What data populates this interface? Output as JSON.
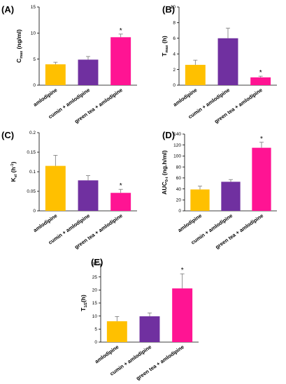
{
  "figure": {
    "colors": [
      "#FFC000",
      "#7030A0",
      "#FF1493"
    ]
  },
  "chart_data": [
    {
      "type": "bar",
      "panel": "(A)",
      "ylabel_main": "C",
      "ylabel_sub": "max",
      "ylabel_tail": " (ng/ml)",
      "categories": [
        "amlodipine",
        "cumin + amlodipine",
        "green tea + amlodipine"
      ],
      "values": [
        4.0,
        4.9,
        9.2
      ],
      "errors": [
        0.4,
        0.6,
        0.6
      ],
      "significant": [
        false,
        false,
        true
      ],
      "star_label": "*",
      "ylim": [
        0,
        15
      ],
      "yticks": [
        "0",
        "5",
        "10",
        "15"
      ]
    },
    {
      "type": "bar",
      "panel": "(B)",
      "ylabel_main": "T",
      "ylabel_sub": "max",
      "ylabel_tail": " (h)",
      "categories": [
        "amlodipine",
        "cumin + amlodipine",
        "green tea + amlodipine"
      ],
      "values": [
        2.6,
        6.0,
        1.0
      ],
      "errors": [
        0.6,
        1.3,
        0.15
      ],
      "significant": [
        false,
        false,
        true
      ],
      "star_label": "*",
      "ylim": [
        0,
        10
      ],
      "yticks": [
        "0",
        "2",
        "4",
        "6",
        "8",
        "10"
      ]
    },
    {
      "type": "bar",
      "panel": "(C)",
      "ylabel_main": "K",
      "ylabel_sub": "el",
      "ylabel_tail": " (h",
      "ylabel_sup": "-1",
      "ylabel_end": ")",
      "categories": [
        "amlodipine",
        "cumin + amlodipine",
        "green tea + amlodipine"
      ],
      "values": [
        0.115,
        0.078,
        0.046
      ],
      "errors": [
        0.027,
        0.012,
        0.009
      ],
      "significant": [
        false,
        false,
        true
      ],
      "star_label": "*",
      "ylim": [
        0,
        0.2
      ],
      "yticks": [
        "0",
        "0.05",
        "0.1",
        "0.15",
        "0.2"
      ]
    },
    {
      "type": "bar",
      "panel": "(D)",
      "ylabel_main": "AUC",
      "ylabel_sub": "0-t",
      "ylabel_tail": " (ng.h/ml)",
      "categories": [
        "amlodipine",
        "cumin + amlodipine",
        "green tea + amlodipine"
      ],
      "values": [
        39,
        53,
        115
      ],
      "errors": [
        6,
        4,
        10
      ],
      "significant": [
        false,
        false,
        true
      ],
      "star_label": "*",
      "ylim": [
        0,
        140
      ],
      "yticks": [
        "0",
        "20",
        "40",
        "60",
        "80",
        "100",
        "120",
        "140"
      ]
    },
    {
      "type": "bar",
      "panel": "(E)",
      "ylabel_main": "T",
      "ylabel_sub": "1/2",
      "ylabel_tail": "(h)",
      "categories": [
        "amlodipine",
        "cumin + amlodipine",
        "green tea + amlodipine"
      ],
      "values": [
        8.0,
        9.9,
        20.6
      ],
      "errors": [
        1.8,
        1.3,
        5.6
      ],
      "significant": [
        false,
        false,
        true
      ],
      "star_label": "*",
      "ylim": [
        0,
        30
      ],
      "yticks": [
        "0",
        "5",
        "10",
        "15",
        "20",
        "25",
        "30"
      ]
    }
  ]
}
